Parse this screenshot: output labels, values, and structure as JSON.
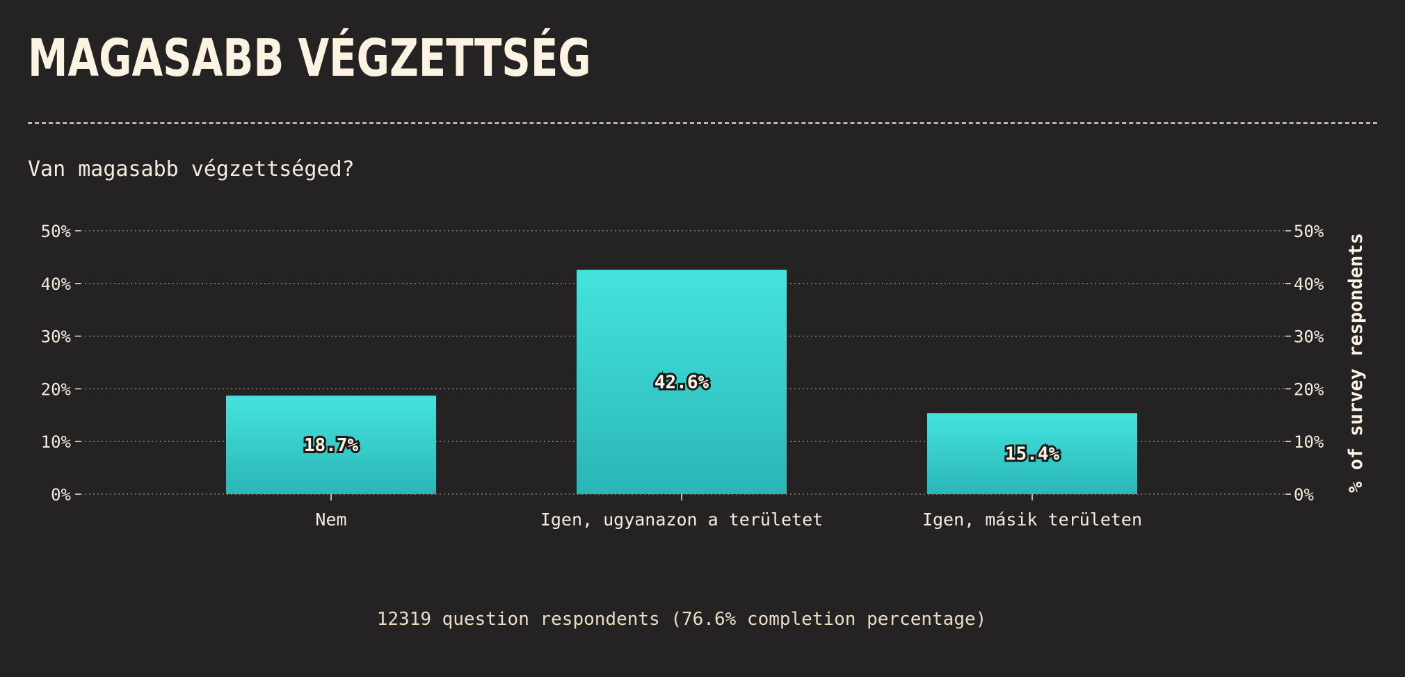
{
  "page": {
    "title": "MAGASABB VÉGZETTSÉG",
    "question": "Van magasabb végzettséged?",
    "footer": "12319 question respondents (76.6% completion percentage)"
  },
  "colors": {
    "background": "#252224",
    "bar_top": "#45e3df",
    "bar_bottom": "#2ab6b6",
    "text": "#f4ecdc",
    "grid": "#8b8580"
  },
  "chart_data": {
    "type": "bar",
    "categories": [
      "Nem",
      "Igen, ugyanazon a területet",
      "Igen, másik területen"
    ],
    "values": [
      18.7,
      42.6,
      15.4
    ],
    "value_labels": [
      "18.7%",
      "42.6%",
      "15.4%"
    ],
    "ylim": [
      0,
      50
    ],
    "yticks": [
      0,
      10,
      20,
      30,
      40,
      50
    ],
    "ytick_labels": [
      "0%",
      "10%",
      "20%",
      "30%",
      "40%",
      "50%"
    ],
    "ylabel": "% of survey respondents",
    "xlabel": "",
    "grid": "horizontal dotted",
    "axes": "left and right"
  }
}
